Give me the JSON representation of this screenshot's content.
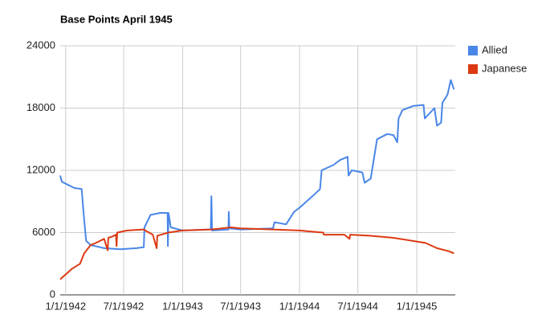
{
  "chart_data": {
    "type": "line",
    "title": "Base Points April 1945",
    "xlim": [
      "12/15/1941",
      "5/1/1945"
    ],
    "xticks": [
      "1/1/1942",
      "7/1/1942",
      "1/1/1943",
      "7/1/1943",
      "1/1/1944",
      "7/1/1944",
      "1/1/1945"
    ],
    "ylim": [
      0,
      24000
    ],
    "yticks": [
      0,
      6000,
      12000,
      18000,
      24000
    ],
    "grid": true,
    "legend": "right",
    "series": [
      {
        "name": "Allied",
        "color": "#4a86e8",
        "x": [
          "12/15/1941",
          "12/20/1941",
          "1/28/1942",
          "2/20/1942",
          "2/27/1942",
          "3/6/1942",
          "3/20/1942",
          "5/1/1942",
          "6/20/1942",
          "8/10/1942",
          "9/2/1942",
          "9/4/1942",
          "9/23/1942",
          "10/23/1942",
          "11/15/1942",
          "11/16/1942",
          "11/18/1942",
          "11/25/1942",
          "1/1/1943",
          "3/30/1943",
          "4/1/1943",
          "4/3/1943",
          "5/24/1943",
          "5/25/1943",
          "5/27/1943",
          "7/1/1943",
          "10/10/1943",
          "10/15/1943",
          "11/20/1943",
          "12/15/1943",
          "1/1/1944",
          "2/10/1944",
          "3/5/1944",
          "3/10/1944",
          "4/15/1944",
          "5/7/1944",
          "5/30/1944",
          "6/2/1944",
          "6/12/1944",
          "7/15/1944",
          "7/22/1944",
          "8/10/1944",
          "8/30/1944",
          "10/1/1944",
          "10/20/1944",
          "11/1/1944",
          "11/5/1944",
          "11/17/1944",
          "12/20/1944",
          "1/22/1945",
          "1/26/1945",
          "2/25/1945",
          "3/5/1945",
          "3/18/1945",
          "3/22/1945",
          "4/7/1945",
          "4/17/1945",
          "4/27/1945"
        ],
        "values": [
          11500,
          10900,
          10300,
          10200,
          7500,
          5200,
          4800,
          4500,
          4400,
          4500,
          4600,
          6500,
          7700,
          7900,
          7900,
          4700,
          7900,
          6500,
          6200,
          6300,
          9500,
          6200,
          6300,
          8000,
          6400,
          6300,
          6400,
          7000,
          6800,
          8000,
          8400,
          9500,
          10200,
          12000,
          12500,
          13000,
          13300,
          11500,
          12000,
          11800,
          10800,
          11200,
          15000,
          15500,
          15400,
          14700,
          17000,
          17800,
          18200,
          18300,
          17000,
          18000,
          16300,
          16600,
          18500,
          19300,
          20700,
          19800
        ]
      },
      {
        "name": "Japanese",
        "color": "#dc3912",
        "x": [
          "12/15/1941",
          "1/20/1942",
          "2/15/1942",
          "2/28/1942",
          "3/20/1942",
          "4/5/1942",
          "5/1/1942",
          "5/12/1942",
          "5/14/1942",
          "5/25/1942",
          "6/7/1942",
          "6/9/1942",
          "6/11/1942",
          "7/12/1942",
          "9/1/1942",
          "9/30/1942",
          "10/12/1942",
          "10/14/1942",
          "11/17/1942",
          "1/1/1943",
          "4/1/1943",
          "6/1/1943",
          "7/1/1943",
          "10/10/1943",
          "1/1/1944",
          "3/15/1944",
          "3/17/1944",
          "5/20/1944",
          "6/5/1944",
          "6/7/1944",
          "8/7/1944",
          "10/20/1944",
          "1/28/1945",
          "3/5/1945",
          "4/12/1945",
          "4/27/1945"
        ],
        "values": [
          1500,
          2500,
          3000,
          4000,
          4800,
          5000,
          5400,
          4300,
          5500,
          5600,
          5800,
          4700,
          6000,
          6200,
          6300,
          5800,
          4500,
          5700,
          6000,
          6200,
          6300,
          6500,
          6400,
          6300,
          6200,
          6000,
          5800,
          5800,
          5400,
          5800,
          5700,
          5500,
          5000,
          4500,
          4200,
          4000
        ]
      }
    ]
  }
}
